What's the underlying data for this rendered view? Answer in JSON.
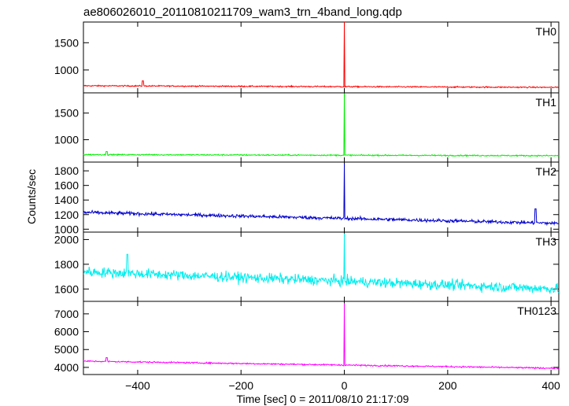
{
  "chart_data": {
    "type": "line",
    "title": "ae806026010_20110810211709_wam3_trn_4band_long.qdp",
    "xlabel": "Time [sec] 0 = 2011/08/10 21:17:09",
    "ylabel": "Counts/sec",
    "xlim": [
      -505,
      415
    ],
    "xticks": [
      -400,
      -200,
      0,
      200,
      400
    ],
    "xtick_labels": [
      "−400",
      "−200",
      "0",
      "200",
      "400"
    ],
    "grid": false,
    "panels": [
      {
        "name": "TH0",
        "color": "#ff0000",
        "ylim": [
          580,
          1880
        ],
        "yticks": [
          1000,
          1500
        ],
        "ytick_labels": [
          "1000",
          "1500"
        ],
        "baseline_start": 710,
        "baseline_end": 680,
        "noise": 20,
        "spike": {
          "x": 0,
          "y": 1900
        },
        "bump": {
          "x": -390,
          "y": 800
        }
      },
      {
        "name": "TH1",
        "color": "#00ee00",
        "ylim": [
          580,
          1880
        ],
        "yticks": [
          1000,
          1500
        ],
        "ytick_labels": [
          "1000",
          "1500"
        ],
        "baseline_start": 720,
        "baseline_end": 700,
        "noise": 20,
        "spike": {
          "x": 0,
          "y": 1870
        },
        "bump": {
          "x": -460,
          "y": 780
        }
      },
      {
        "name": "TH2",
        "color": "#0000cc",
        "ylim": [
          960,
          1920
        ],
        "yticks": [
          1000,
          1200,
          1400,
          1600,
          1800
        ],
        "ytick_labels": [
          "1000",
          "1200",
          "1400",
          "1600",
          "1800"
        ],
        "baseline_start": 1230,
        "baseline_end": 1080,
        "noise": 40,
        "spike": {
          "x": 0,
          "y": 1900
        },
        "bump": {
          "x": 370,
          "y": 1280
        }
      },
      {
        "name": "TH3",
        "color": "#00eeee",
        "ylim": [
          1500,
          2060
        ],
        "yticks": [
          1600,
          1800,
          2000
        ],
        "ytick_labels": [
          "1600",
          "1800",
          "2000"
        ],
        "baseline_start": 1740,
        "baseline_end": 1600,
        "noise": 70,
        "spike": {
          "x": 0,
          "y": 2050
        },
        "bump": {
          "x": -420,
          "y": 1880
        }
      },
      {
        "name": "TH0123",
        "color": "#ff00ff",
        "ylim": [
          3600,
          7700
        ],
        "yticks": [
          4000,
          5000,
          6000,
          7000
        ],
        "ytick_labels": [
          "4000",
          "5000",
          "6000",
          "7000"
        ],
        "baseline_start": 4350,
        "baseline_end": 3950,
        "noise": 70,
        "spike": {
          "x": 0,
          "y": 7600
        },
        "bump": {
          "x": -460,
          "y": 4550
        }
      }
    ]
  }
}
